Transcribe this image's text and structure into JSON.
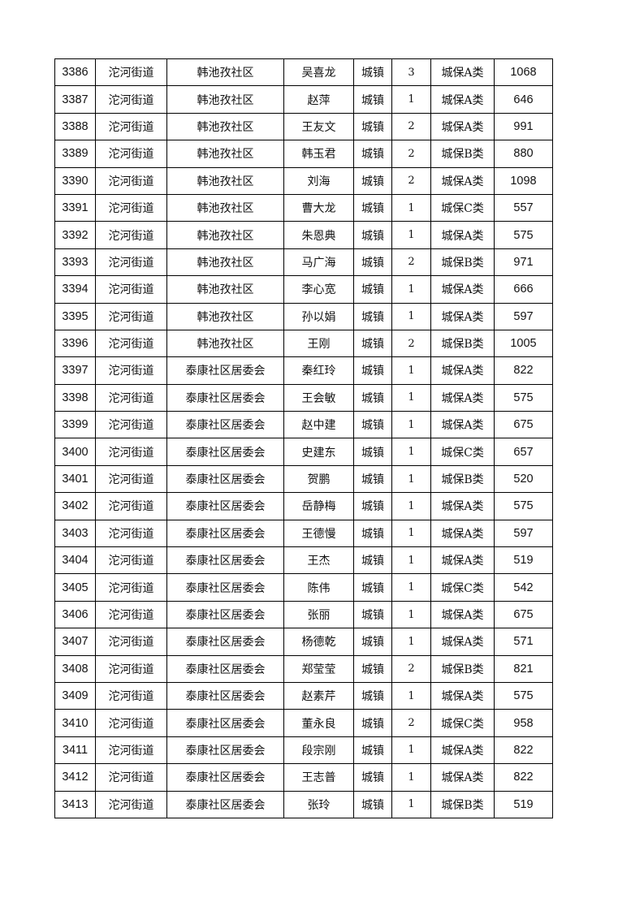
{
  "rows": [
    [
      "3386",
      "沱河街道",
      "韩池孜社区",
      "吴喜龙",
      "城镇",
      "3",
      "城保A类",
      "1068"
    ],
    [
      "3387",
      "沱河街道",
      "韩池孜社区",
      "赵萍",
      "城镇",
      "1",
      "城保A类",
      "646"
    ],
    [
      "3388",
      "沱河街道",
      "韩池孜社区",
      "王友文",
      "城镇",
      "2",
      "城保A类",
      "991"
    ],
    [
      "3389",
      "沱河街道",
      "韩池孜社区",
      "韩玉君",
      "城镇",
      "2",
      "城保B类",
      "880"
    ],
    [
      "3390",
      "沱河街道",
      "韩池孜社区",
      "刘海",
      "城镇",
      "2",
      "城保A类",
      "1098"
    ],
    [
      "3391",
      "沱河街道",
      "韩池孜社区",
      "曹大龙",
      "城镇",
      "1",
      "城保C类",
      "557"
    ],
    [
      "3392",
      "沱河街道",
      "韩池孜社区",
      "朱恩典",
      "城镇",
      "1",
      "城保A类",
      "575"
    ],
    [
      "3393",
      "沱河街道",
      "韩池孜社区",
      "马广海",
      "城镇",
      "2",
      "城保B类",
      "971"
    ],
    [
      "3394",
      "沱河街道",
      "韩池孜社区",
      "李心宽",
      "城镇",
      "1",
      "城保A类",
      "666"
    ],
    [
      "3395",
      "沱河街道",
      "韩池孜社区",
      "孙以娟",
      "城镇",
      "1",
      "城保A类",
      "597"
    ],
    [
      "3396",
      "沱河街道",
      "韩池孜社区",
      "王刚",
      "城镇",
      "2",
      "城保B类",
      "1005"
    ],
    [
      "3397",
      "沱河街道",
      "泰康社区居委会",
      "秦红玲",
      "城镇",
      "1",
      "城保A类",
      "822"
    ],
    [
      "3398",
      "沱河街道",
      "泰康社区居委会",
      "王会敏",
      "城镇",
      "1",
      "城保A类",
      "575"
    ],
    [
      "3399",
      "沱河街道",
      "泰康社区居委会",
      "赵中建",
      "城镇",
      "1",
      "城保A类",
      "675"
    ],
    [
      "3400",
      "沱河街道",
      "泰康社区居委会",
      "史建东",
      "城镇",
      "1",
      "城保C类",
      "657"
    ],
    [
      "3401",
      "沱河街道",
      "泰康社区居委会",
      "贺鹏",
      "城镇",
      "1",
      "城保B类",
      "520"
    ],
    [
      "3402",
      "沱河街道",
      "泰康社区居委会",
      "岳静梅",
      "城镇",
      "1",
      "城保A类",
      "575"
    ],
    [
      "3403",
      "沱河街道",
      "泰康社区居委会",
      "王德慢",
      "城镇",
      "1",
      "城保A类",
      "597"
    ],
    [
      "3404",
      "沱河街道",
      "泰康社区居委会",
      "王杰",
      "城镇",
      "1",
      "城保A类",
      "519"
    ],
    [
      "3405",
      "沱河街道",
      "泰康社区居委会",
      "陈伟",
      "城镇",
      "1",
      "城保C类",
      "542"
    ],
    [
      "3406",
      "沱河街道",
      "泰康社区居委会",
      "张丽",
      "城镇",
      "1",
      "城保A类",
      "675"
    ],
    [
      "3407",
      "沱河街道",
      "泰康社区居委会",
      "杨德乾",
      "城镇",
      "1",
      "城保A类",
      "571"
    ],
    [
      "3408",
      "沱河街道",
      "泰康社区居委会",
      "郑莹莹",
      "城镇",
      "2",
      "城保B类",
      "821"
    ],
    [
      "3409",
      "沱河街道",
      "泰康社区居委会",
      "赵素芹",
      "城镇",
      "1",
      "城保A类",
      "575"
    ],
    [
      "3410",
      "沱河街道",
      "泰康社区居委会",
      "董永良",
      "城镇",
      "2",
      "城保C类",
      "958"
    ],
    [
      "3411",
      "沱河街道",
      "泰康社区居委会",
      "段宗刚",
      "城镇",
      "1",
      "城保A类",
      "822"
    ],
    [
      "3412",
      "沱河街道",
      "泰康社区居委会",
      "王志普",
      "城镇",
      "1",
      "城保A类",
      "822"
    ],
    [
      "3413",
      "沱河街道",
      "泰康社区居委会",
      "张玲",
      "城镇",
      "1",
      "城保B类",
      "519"
    ]
  ]
}
